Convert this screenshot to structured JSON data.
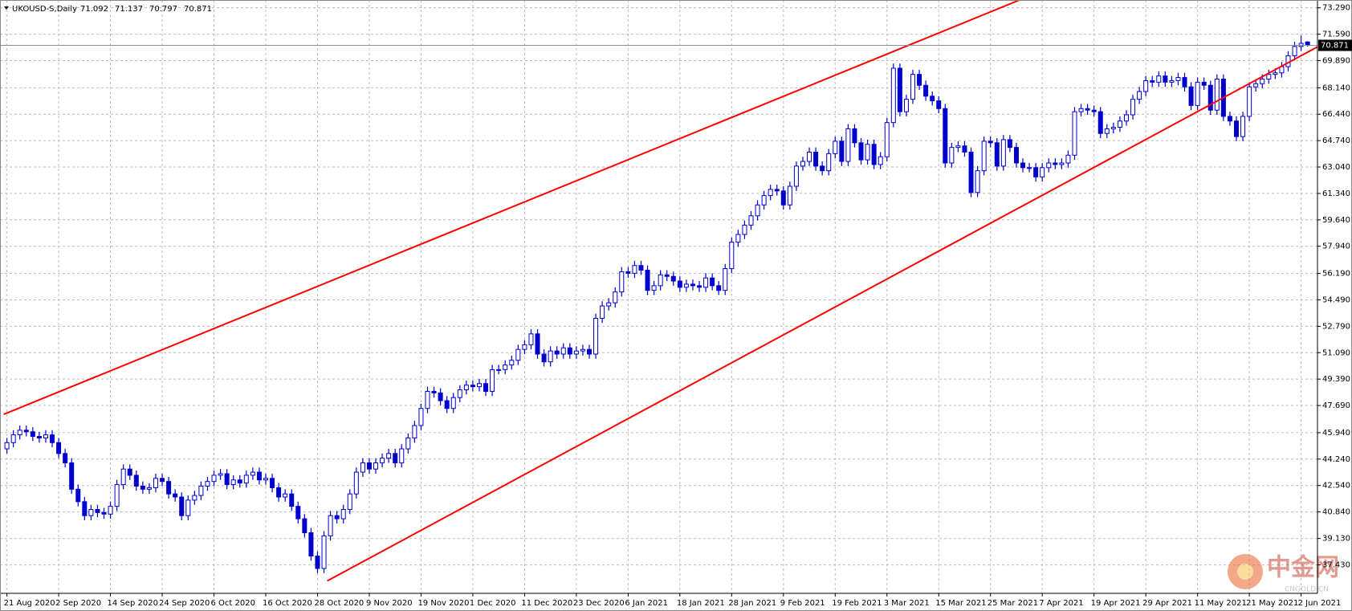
{
  "chart_data": {
    "type": "candlestick",
    "title": "UKOUSD-S,Daily",
    "categories": [
      "21 Aug 2020",
      null,
      null,
      null,
      null,
      null,
      null,
      null,
      "2 Sep 2020",
      null,
      null,
      null,
      null,
      null,
      null,
      null,
      "14 Sep 2020",
      null,
      null,
      null,
      null,
      null,
      null,
      null,
      "24 Sep 2020",
      null,
      null,
      null,
      null,
      null,
      null,
      null,
      "6 Oct 2020",
      null,
      null,
      null,
      null,
      null,
      null,
      null,
      "16 Oct 2020",
      null,
      null,
      null,
      null,
      null,
      null,
      null,
      "28 Oct 2020",
      null,
      null,
      null,
      null,
      null,
      null,
      null,
      "9 Nov 2020",
      null,
      null,
      null,
      null,
      null,
      null,
      null,
      "19 Nov 2020",
      null,
      null,
      null,
      null,
      null,
      null,
      null,
      "1 Dec 2020",
      null,
      null,
      null,
      null,
      null,
      null,
      null,
      "11 Dec 2020",
      null,
      null,
      null,
      null,
      null,
      null,
      null,
      "23 Dec 2020",
      null,
      null,
      null,
      null,
      null,
      null,
      null,
      "6 Jan 2021",
      null,
      null,
      null,
      null,
      null,
      null,
      null,
      "18 Jan 2021",
      null,
      null,
      null,
      null,
      null,
      null,
      null,
      "28 Jan 2021",
      null,
      null,
      null,
      null,
      null,
      null,
      null,
      "9 Feb 2021",
      null,
      null,
      null,
      null,
      null,
      null,
      null,
      "19 Feb 2021",
      null,
      null,
      null,
      null,
      null,
      null,
      null,
      "3 Mar 2021",
      null,
      null,
      null,
      null,
      null,
      null,
      null,
      "15 Mar 2021",
      null,
      null,
      null,
      null,
      null,
      null,
      null,
      "25 Mar 2021",
      null,
      null,
      null,
      null,
      null,
      null,
      null,
      "7 Apr 2021",
      null,
      null,
      null,
      null,
      null,
      null,
      null,
      "19 Apr 2021",
      null,
      null,
      null,
      null,
      null,
      null,
      null,
      "29 Apr 2021",
      null,
      null,
      null,
      null,
      null,
      null,
      null,
      "11 May 2021",
      null,
      null,
      null,
      null,
      null,
      null,
      null,
      "21 May 2021",
      null,
      null,
      null,
      null,
      null,
      null,
      null,
      "2 Jun 2021",
      null
    ],
    "open": [
      44.9,
      45.3,
      45.8,
      46.1,
      46.0,
      45.7,
      45.6,
      45.8,
      45.3,
      44.6,
      44.0,
      42.3,
      41.5,
      40.6,
      41.0,
      40.8,
      40.7,
      41.2,
      42.6,
      43.6,
      43.2,
      42.5,
      42.3,
      42.4,
      43.0,
      42.8,
      42.0,
      41.8,
      40.6,
      41.6,
      41.9,
      42.5,
      42.8,
      43.2,
      43.3,
      42.6,
      42.9,
      42.7,
      43.2,
      43.4,
      42.9,
      43.0,
      42.4,
      41.8,
      42.0,
      41.2,
      40.4,
      39.5,
      38.0,
      37.2,
      39.3,
      40.6,
      40.4,
      41.0,
      42.0,
      43.4,
      44.0,
      43.6,
      44.0,
      44.3,
      44.6,
      44.0,
      44.9,
      45.6,
      46.4,
      47.5,
      48.6,
      48.5,
      48.0,
      47.5,
      48.2,
      48.7,
      49.0,
      48.9,
      49.1,
      48.6,
      50.0,
      50.0,
      50.3,
      50.6,
      51.3,
      51.6,
      52.3,
      51.0,
      50.5,
      51.2,
      51.0,
      51.4,
      51.0,
      51.2,
      51.3,
      51.0,
      53.3,
      54.1,
      54.3,
      55.0,
      56.3,
      56.2,
      56.7,
      56.4,
      55.1,
      55.4,
      56.1,
      56.0,
      55.7,
      55.3,
      55.5,
      55.4,
      55.3,
      55.9,
      55.4,
      55.1,
      56.5,
      58.2,
      58.7,
      59.3,
      59.9,
      60.6,
      61.2,
      61.6,
      61.5,
      60.6,
      61.8,
      63.1,
      63.4,
      64.0,
      63.1,
      62.8,
      63.9,
      64.7,
      63.4,
      65.5,
      64.6,
      63.5,
      64.5,
      63.2,
      63.7,
      65.9,
      69.4,
      66.6,
      67.4,
      69.0,
      68.3,
      67.6,
      67.3,
      66.8,
      63.3,
      64.3,
      64.4,
      64.0,
      61.4,
      62.8,
      64.7,
      64.6,
      63.1,
      64.8,
      64.3,
      63.3,
      63.0,
      63.0,
      62.4,
      63.0,
      63.3,
      63.2,
      63.3,
      63.8,
      66.6,
      66.8,
      66.7,
      66.6,
      65.2,
      65.5,
      65.6,
      66.0,
      66.4,
      67.4,
      67.9,
      68.6,
      68.5,
      68.9,
      68.5,
      68.6,
      68.8,
      68.2,
      67.0,
      68.5,
      68.3,
      66.7,
      68.7,
      66.3,
      66.0,
      65.0,
      66.3,
      68.2,
      68.4,
      68.7,
      69.0,
      69.1,
      69.5,
      70.2,
      70.8,
      71.092
    ],
    "high": [
      45.6,
      46.1,
      46.4,
      46.4,
      46.3,
      46.0,
      46.1,
      46.1,
      45.6,
      44.9,
      44.3,
      42.6,
      41.8,
      41.3,
      41.3,
      41.1,
      41.5,
      42.9,
      43.9,
      43.9,
      43.5,
      42.8,
      42.7,
      43.3,
      43.3,
      43.1,
      42.3,
      42.1,
      41.9,
      42.2,
      42.8,
      43.1,
      43.5,
      43.6,
      43.6,
      43.2,
      43.2,
      43.5,
      43.7,
      43.7,
      43.3,
      43.3,
      42.7,
      42.3,
      42.3,
      41.5,
      40.7,
      39.8,
      38.3,
      39.6,
      40.9,
      40.9,
      41.3,
      42.3,
      43.7,
      44.3,
      44.3,
      44.3,
      44.6,
      44.9,
      44.9,
      45.2,
      45.9,
      46.7,
      47.8,
      48.9,
      48.9,
      48.8,
      48.3,
      48.5,
      49.0,
      49.3,
      49.3,
      49.4,
      49.4,
      50.3,
      50.3,
      50.6,
      50.9,
      51.6,
      51.9,
      52.6,
      52.6,
      51.3,
      51.5,
      51.5,
      51.7,
      51.7,
      51.5,
      51.6,
      51.6,
      53.6,
      54.4,
      54.6,
      55.3,
      56.6,
      56.6,
      57.0,
      57.0,
      56.7,
      55.7,
      56.4,
      56.4,
      56.3,
      56.0,
      55.8,
      55.8,
      55.7,
      56.2,
      56.2,
      55.7,
      56.8,
      58.5,
      59.0,
      59.6,
      60.2,
      60.9,
      61.5,
      61.9,
      61.9,
      61.8,
      62.1,
      63.4,
      63.7,
      64.3,
      64.3,
      63.4,
      64.2,
      65.0,
      65.0,
      65.8,
      65.8,
      64.9,
      64.8,
      64.8,
      64.0,
      66.2,
      69.7,
      69.7,
      67.7,
      69.3,
      69.3,
      68.6,
      67.9,
      67.6,
      67.1,
      64.6,
      64.7,
      64.7,
      64.3,
      63.1,
      65.0,
      65.0,
      64.9,
      65.1,
      65.1,
      64.6,
      63.6,
      63.3,
      63.3,
      63.3,
      63.6,
      63.6,
      63.6,
      64.1,
      66.9,
      67.1,
      67.1,
      67.0,
      66.9,
      65.8,
      65.9,
      66.3,
      66.7,
      67.7,
      68.2,
      68.9,
      68.9,
      69.2,
      69.2,
      68.9,
      69.1,
      69.1,
      68.5,
      68.8,
      68.8,
      68.6,
      69.0,
      69.0,
      66.6,
      66.3,
      66.6,
      68.5,
      68.7,
      69.0,
      69.3,
      69.4,
      69.8,
      70.5,
      71.1,
      71.5,
      71.137
    ],
    "low": [
      44.6,
      45.0,
      45.5,
      45.7,
      45.4,
      45.3,
      45.3,
      45.0,
      44.3,
      43.7,
      42.0,
      41.2,
      40.3,
      40.3,
      40.5,
      40.4,
      40.4,
      40.9,
      42.3,
      42.9,
      42.2,
      42.0,
      42.0,
      42.1,
      42.5,
      41.7,
      41.5,
      40.3,
      40.3,
      41.3,
      41.6,
      42.2,
      42.5,
      42.9,
      42.3,
      42.3,
      42.4,
      42.4,
      42.9,
      42.6,
      42.6,
      42.1,
      41.5,
      41.5,
      40.9,
      40.1,
      39.2,
      37.7,
      36.9,
      36.9,
      39.0,
      40.1,
      40.1,
      40.7,
      41.7,
      43.1,
      43.3,
      43.3,
      43.7,
      44.0,
      43.7,
      43.7,
      44.6,
      45.3,
      46.1,
      47.2,
      48.2,
      47.7,
      47.2,
      47.2,
      47.9,
      48.4,
      48.6,
      48.6,
      48.3,
      48.3,
      49.7,
      49.7,
      50.0,
      50.3,
      51.0,
      51.3,
      50.7,
      50.2,
      50.2,
      50.7,
      50.7,
      50.7,
      50.7,
      50.9,
      50.7,
      50.7,
      53.0,
      53.8,
      54.0,
      54.7,
      55.9,
      55.9,
      56.1,
      54.8,
      54.8,
      55.1,
      55.7,
      55.4,
      55.0,
      55.0,
      55.1,
      55.0,
      55.0,
      55.1,
      54.8,
      54.8,
      56.2,
      57.9,
      58.4,
      59.0,
      59.6,
      60.3,
      60.9,
      61.2,
      60.3,
      60.3,
      61.5,
      62.8,
      63.1,
      62.8,
      62.5,
      62.5,
      63.6,
      63.1,
      63.1,
      64.3,
      63.2,
      63.2,
      62.9,
      62.9,
      63.4,
      65.6,
      66.3,
      66.3,
      67.1,
      68.0,
      67.3,
      67.0,
      66.5,
      63.0,
      63.0,
      64.0,
      63.7,
      61.1,
      61.1,
      62.5,
      64.3,
      62.8,
      62.8,
      64.0,
      63.0,
      62.7,
      62.7,
      62.1,
      62.1,
      62.7,
      62.9,
      62.9,
      63.0,
      63.5,
      66.3,
      66.4,
      66.3,
      64.9,
      64.9,
      65.2,
      65.3,
      65.7,
      66.1,
      67.1,
      67.6,
      68.2,
      68.2,
      68.2,
      68.2,
      68.3,
      67.9,
      66.7,
      66.7,
      68.0,
      66.4,
      66.4,
      66.0,
      65.7,
      64.7,
      64.7,
      66.0,
      67.9,
      68.1,
      68.4,
      68.7,
      68.8,
      69.2,
      69.9,
      70.5,
      70.797
    ],
    "close": [
      45.3,
      45.8,
      46.1,
      46.0,
      45.7,
      45.6,
      45.8,
      45.3,
      44.6,
      44.0,
      42.3,
      41.5,
      40.6,
      41.0,
      40.8,
      40.7,
      41.2,
      42.6,
      43.6,
      43.2,
      42.5,
      42.3,
      42.4,
      43.0,
      42.8,
      42.0,
      41.8,
      40.6,
      41.6,
      41.9,
      42.5,
      42.8,
      43.2,
      43.3,
      42.6,
      42.9,
      42.7,
      43.2,
      43.4,
      42.9,
      43.0,
      42.4,
      41.8,
      42.0,
      41.2,
      40.4,
      39.5,
      38.0,
      37.2,
      39.3,
      40.6,
      40.4,
      41.0,
      42.0,
      43.4,
      44.0,
      43.6,
      44.0,
      44.3,
      44.6,
      44.0,
      44.9,
      45.6,
      46.4,
      47.5,
      48.6,
      48.5,
      48.0,
      47.5,
      48.2,
      48.7,
      49.0,
      48.9,
      49.1,
      48.6,
      50.0,
      50.0,
      50.3,
      50.6,
      51.3,
      51.6,
      52.3,
      51.0,
      50.5,
      51.2,
      51.0,
      51.4,
      51.0,
      51.2,
      51.3,
      51.0,
      53.3,
      54.1,
      54.3,
      55.0,
      56.3,
      56.2,
      56.7,
      56.4,
      55.1,
      55.4,
      56.1,
      56.0,
      55.7,
      55.3,
      55.5,
      55.4,
      55.3,
      55.9,
      55.4,
      55.1,
      56.5,
      58.2,
      58.7,
      59.3,
      59.9,
      60.6,
      61.2,
      61.6,
      61.5,
      60.6,
      61.8,
      63.1,
      63.4,
      64.0,
      63.1,
      62.8,
      63.9,
      64.7,
      63.4,
      65.5,
      64.6,
      63.5,
      64.5,
      63.2,
      63.7,
      65.9,
      69.4,
      66.6,
      67.4,
      69.0,
      68.3,
      67.6,
      67.3,
      66.8,
      63.3,
      64.3,
      64.4,
      64.0,
      61.4,
      62.8,
      64.7,
      64.6,
      63.1,
      64.8,
      64.3,
      63.3,
      63.0,
      63.0,
      62.4,
      63.0,
      63.3,
      63.2,
      63.3,
      63.8,
      66.6,
      66.8,
      66.7,
      66.6,
      65.2,
      65.5,
      65.6,
      66.0,
      66.4,
      67.4,
      67.9,
      68.6,
      68.5,
      68.9,
      68.5,
      68.6,
      68.8,
      68.2,
      67.0,
      68.5,
      68.3,
      66.7,
      68.7,
      66.3,
      66.0,
      65.0,
      66.3,
      68.2,
      68.4,
      68.7,
      69.0,
      69.1,
      69.5,
      70.2,
      70.8,
      71.0,
      70.871
    ],
    "color": "#0000cc",
    "ylim": [
      35.6,
      73.79
    ],
    "yticks": [
      {
        "value": 73.29,
        "label": "73.290"
      },
      {
        "value": 71.59,
        "label": "71.590"
      },
      {
        "value": 69.89,
        "label": "69.890"
      },
      {
        "value": 68.14,
        "label": "68.140"
      },
      {
        "value": 66.44,
        "label": "66.440"
      },
      {
        "value": 64.74,
        "label": "64.740"
      },
      {
        "value": 63.04,
        "label": "63.040"
      },
      {
        "value": 61.34,
        "label": "61.340"
      },
      {
        "value": 59.64,
        "label": "59.640"
      },
      {
        "value": 57.94,
        "label": "57.940"
      },
      {
        "value": 56.19,
        "label": "56.190"
      },
      {
        "value": 54.49,
        "label": "54.490"
      },
      {
        "value": 52.79,
        "label": "52.790"
      },
      {
        "value": 51.09,
        "label": "51.090"
      },
      {
        "value": 49.39,
        "label": "49.390"
      },
      {
        "value": 47.69,
        "label": "47.690"
      },
      {
        "value": 45.94,
        "label": "45.940"
      },
      {
        "value": 44.24,
        "label": "44.240"
      },
      {
        "value": 42.54,
        "label": "42.540"
      },
      {
        "value": 40.84,
        "label": "40.840"
      },
      {
        "value": 39.13,
        "label": "39.130"
      },
      {
        "value": 37.43,
        "label": "37.430"
      }
    ],
    "grid": true,
    "trendlines": [
      {
        "color": "#ff0000",
        "points": [
          [
            -0.5,
            47.12
          ],
          [
            156.5,
            73.79
          ]
        ]
      },
      {
        "color": "#ff0000",
        "points": [
          [
            49.5,
            36.4
          ],
          [
            208,
            72.0
          ]
        ]
      }
    ],
    "watermark": "中金网",
    "watermark_sub": "CNGOLD.CN"
  }
}
